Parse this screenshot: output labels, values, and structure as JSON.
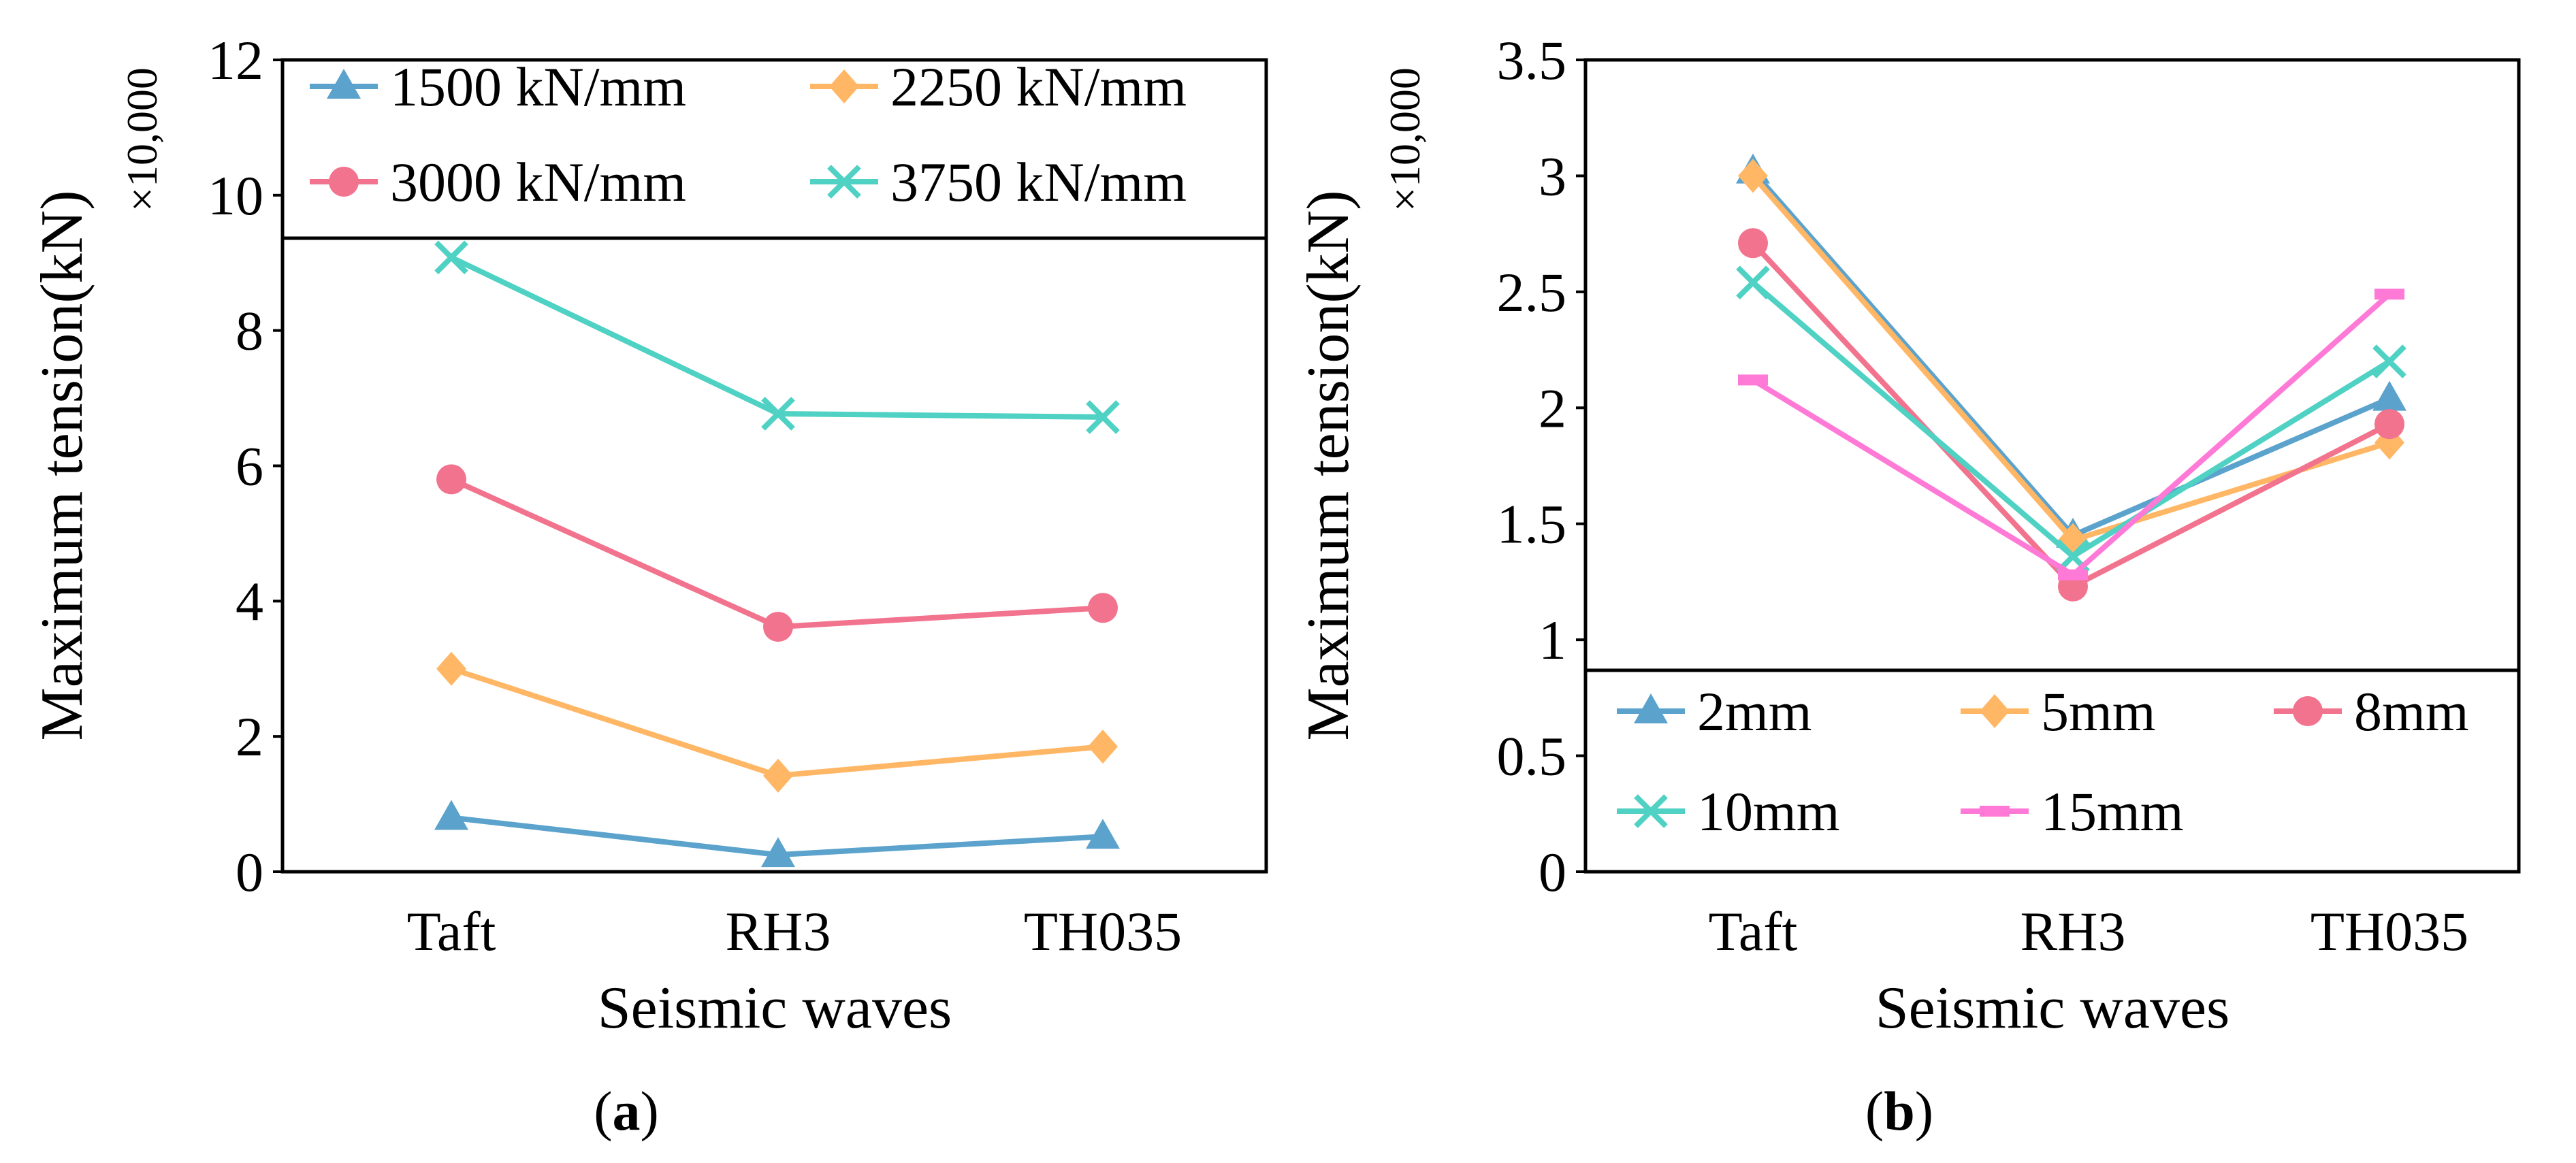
{
  "colors": {
    "blue": "#5BA3CC",
    "orange": "#FFB766",
    "pink": "#F2738E",
    "teal": "#4FD1C4",
    "magenta": "#FF7AD7",
    "axis": "#000000"
  },
  "chart_data": [
    {
      "id": "a",
      "type": "line",
      "panel_label": "(a)",
      "panel_letter": "a",
      "xlabel": "Seismic waves",
      "ylabel": "Maximum tension(kN)",
      "multiplier": "×10,000",
      "categories": [
        "Taft",
        "RH3",
        "TH035"
      ],
      "ylim": [
        0,
        12
      ],
      "yticks": [
        0,
        2,
        4,
        6,
        8,
        10,
        12
      ],
      "grid": false,
      "legend_position": "top",
      "series": [
        {
          "name": "1500 kN/mm",
          "values": [
            0.8,
            0.25,
            0.52
          ],
          "color": "blue",
          "marker": "triangle"
        },
        {
          "name": "2250 kN/mm",
          "values": [
            3.0,
            1.42,
            1.85
          ],
          "color": "orange",
          "marker": "diamond"
        },
        {
          "name": "3000 kN/mm",
          "values": [
            5.8,
            3.62,
            3.9
          ],
          "color": "pink",
          "marker": "circle"
        },
        {
          "name": "3750 kN/mm",
          "values": [
            9.08,
            6.77,
            6.72
          ],
          "color": "teal",
          "marker": "x"
        }
      ]
    },
    {
      "id": "b",
      "type": "line",
      "panel_label": "(b)",
      "panel_letter": "b",
      "xlabel": "Seismic waves",
      "ylabel": "Maximum tension(kN)",
      "multiplier": "×10,000",
      "categories": [
        "Taft",
        "RH3",
        "TH035"
      ],
      "ylim": [
        0,
        3.5
      ],
      "yticks": [
        0,
        0.5,
        1,
        1.5,
        2,
        2.5,
        3,
        3.5
      ],
      "grid": false,
      "legend_position": "bottom",
      "series": [
        {
          "name": "2mm",
          "values": [
            3.02,
            1.45,
            2.04
          ],
          "color": "blue",
          "marker": "triangle"
        },
        {
          "name": "5mm",
          "values": [
            3.0,
            1.43,
            1.85
          ],
          "color": "orange",
          "marker": "diamond"
        },
        {
          "name": "8mm",
          "values": [
            2.71,
            1.23,
            1.93
          ],
          "color": "pink",
          "marker": "circle"
        },
        {
          "name": "10mm",
          "values": [
            2.54,
            1.36,
            2.2
          ],
          "color": "teal",
          "marker": "x"
        },
        {
          "name": "15mm",
          "values": [
            2.12,
            1.28,
            2.49
          ],
          "color": "magenta",
          "marker": "dash"
        }
      ]
    }
  ]
}
